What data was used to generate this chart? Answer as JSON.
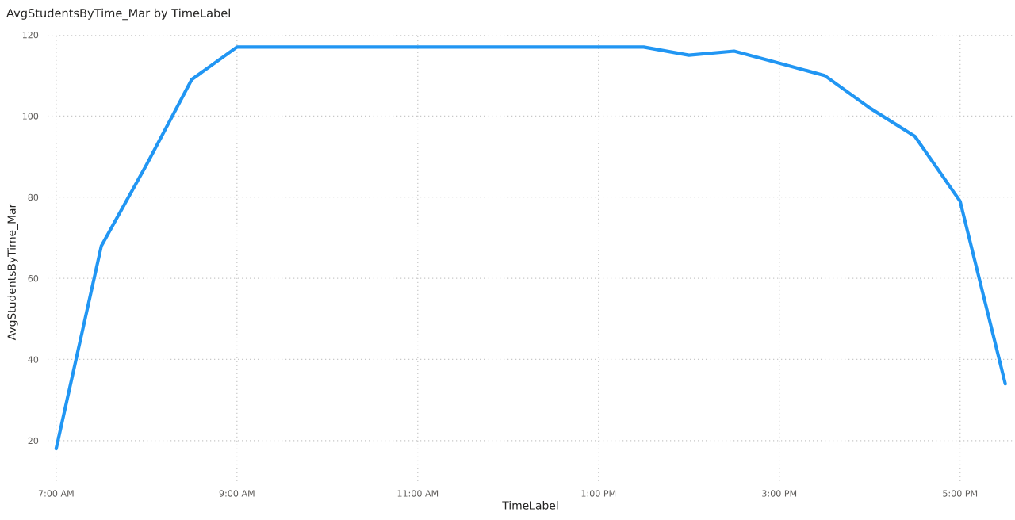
{
  "chart_data": {
    "type": "line",
    "title": "AvgStudentsByTime_Mar by TimeLabel",
    "xlabel": "TimeLabel",
    "ylabel": "AvgStudentsByTime_Mar",
    "categories": [
      "7:00 AM",
      null,
      null,
      null,
      "9:00 AM",
      null,
      null,
      null,
      "11:00 AM",
      null,
      null,
      null,
      "1:00 PM",
      null,
      null,
      null,
      "3:00 PM",
      null,
      null,
      null,
      "5:00 PM",
      null
    ],
    "values": [
      18,
      68,
      88,
      109,
      117,
      117,
      117,
      117,
      117,
      117,
      117,
      117,
      117,
      117,
      115,
      116,
      113,
      110,
      102,
      95,
      79,
      34
    ],
    "color": "#2196f3",
    "ylim": [
      10,
      120
    ],
    "yticks": [
      20,
      40,
      60,
      80,
      100,
      120
    ],
    "grid": true,
    "line_style": "solid"
  }
}
